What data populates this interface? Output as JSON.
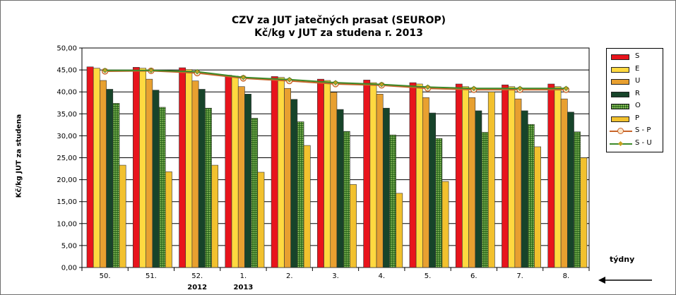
{
  "chart_data": {
    "type": "bar",
    "title": "CZV za JUT jatečných prasat (SEUROP)",
    "subtitle": "Kč/kg v JUT za studena r. 2013",
    "ylabel": "Kč/kg  JUT za studena",
    "xlabel": "týdny",
    "ylim": [
      0,
      50
    ],
    "y_ticks": [
      "0,00",
      "5,00",
      "10,00",
      "15,00",
      "20,00",
      "25,00",
      "30,00",
      "35,00",
      "40,00",
      "45,00",
      "50,00"
    ],
    "grid": true,
    "legend_position": "right",
    "categories": [
      "50.",
      "51.",
      "52.",
      "1.",
      "2.",
      "3.",
      "4.",
      "5.",
      "6.",
      "7.",
      "8."
    ],
    "year_labels": [
      {
        "category": "52.",
        "text": "2012"
      },
      {
        "category": "1.",
        "text": "2013"
      }
    ],
    "series": [
      {
        "name": "S",
        "type": "bar",
        "color": "#E8141C",
        "values": [
          45.7,
          45.6,
          45.5,
          43.8,
          43.5,
          42.9,
          42.7,
          42.1,
          41.8,
          41.6,
          41.8
        ]
      },
      {
        "name": "E",
        "type": "bar",
        "color": "#FFD940",
        "values": [
          45.4,
          45.4,
          45.1,
          43.6,
          43.3,
          42.6,
          42.1,
          41.8,
          41.2,
          41.2,
          41.2
        ]
      },
      {
        "name": "U",
        "type": "bar",
        "color": "#E8A030",
        "values": [
          42.6,
          42.9,
          42.5,
          41.2,
          40.8,
          39.9,
          39.5,
          38.7,
          38.7,
          38.4,
          38.4
        ]
      },
      {
        "name": "R",
        "type": "bar",
        "color": "#17442A",
        "values": [
          40.6,
          40.4,
          40.6,
          39.5,
          38.3,
          36.0,
          36.3,
          35.2,
          35.7,
          35.7,
          35.4
        ]
      },
      {
        "name": "O",
        "type": "bar",
        "color": "#8EBF50",
        "pattern": "dots",
        "values": [
          37.4,
          36.5,
          36.3,
          34.0,
          33.2,
          31.0,
          30.2,
          29.4,
          30.8,
          32.6,
          30.9
        ]
      },
      {
        "name": "P",
        "type": "bar",
        "color": "#F2C12E",
        "values": [
          23.3,
          21.8,
          23.3,
          21.7,
          27.8,
          18.9,
          16.9,
          19.6,
          40.0,
          27.5,
          25.0
        ]
      },
      {
        "name": "S - P",
        "type": "line",
        "color": "#C8642A",
        "marker": "circle",
        "values": [
          44.7,
          44.8,
          44.3,
          43.1,
          42.5,
          41.8,
          41.5,
          40.8,
          40.5,
          40.5,
          40.5
        ]
      },
      {
        "name": "S - U",
        "type": "line",
        "color": "#3D8A2A",
        "marker": "diamond",
        "values": [
          44.9,
          44.9,
          44.6,
          43.3,
          42.8,
          42.1,
          41.7,
          41.1,
          40.8,
          40.8,
          40.8
        ]
      }
    ]
  }
}
